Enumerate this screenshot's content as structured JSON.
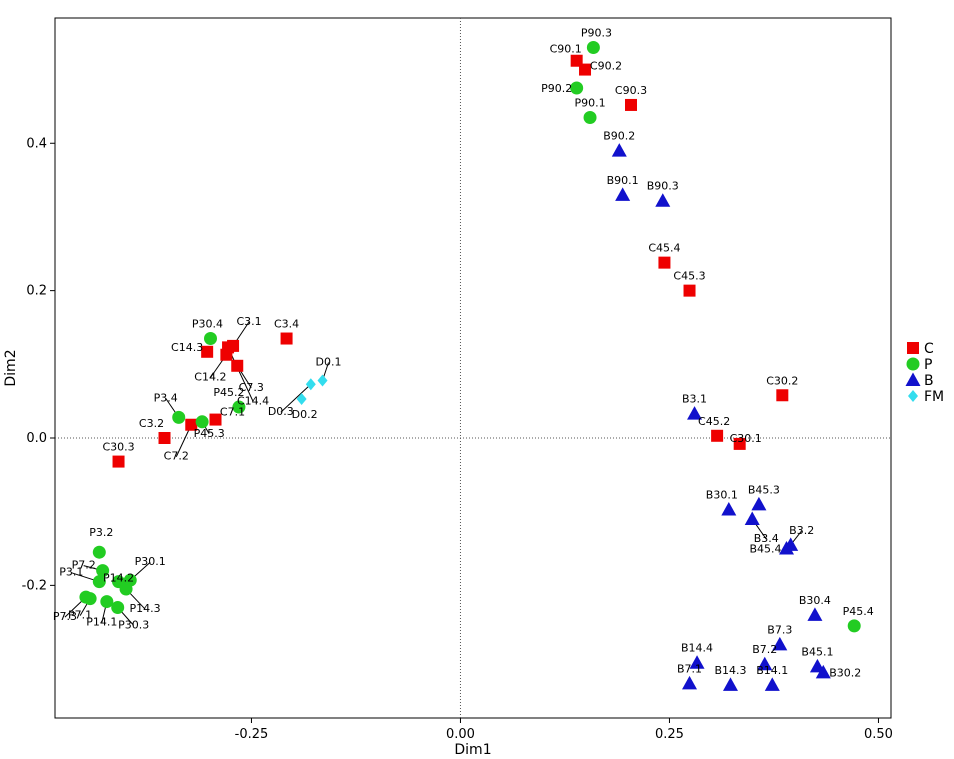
{
  "chart_data": {
    "type": "scatter",
    "xlabel": "Dim1",
    "ylabel": "Dim2",
    "xlim": [
      -0.485,
      0.515
    ],
    "ylim": [
      -0.38,
      0.57
    ],
    "xticks": [
      -0.25,
      0.0,
      0.25,
      0.5
    ],
    "xtick_labels": [
      "-0.25",
      "0.00",
      "0.25",
      "0.50"
    ],
    "yticks": [
      -0.2,
      0.0,
      0.2,
      0.4
    ],
    "ytick_labels": [
      "-0.2",
      "0.0",
      "0.2",
      "0.4"
    ],
    "reference_lines": {
      "x": 0.0,
      "y": 0.0,
      "style": "dotted"
    },
    "legend_position": "right",
    "series": [
      {
        "name": "C",
        "marker": "square",
        "color": "#ee0000",
        "points": [
          {
            "label": "C90.1",
            "x": 0.139,
            "y": 0.512
          },
          {
            "label": "C90.2",
            "x": 0.149,
            "y": 0.5
          },
          {
            "label": "C90.3",
            "x": 0.204,
            "y": 0.452
          },
          {
            "label": "C45.4",
            "x": 0.244,
            "y": 0.238
          },
          {
            "label": "C45.3",
            "x": 0.274,
            "y": 0.2
          },
          {
            "label": "C30.2",
            "x": 0.385,
            "y": 0.058
          },
          {
            "label": "C45.2",
            "x": 0.307,
            "y": 0.003
          },
          {
            "label": "C30.1",
            "x": 0.334,
            "y": -0.008
          },
          {
            "label": "C3.1",
            "x": -0.272,
            "y": 0.125
          },
          {
            "label": "C3.4",
            "x": -0.208,
            "y": 0.135
          },
          {
            "label": "C14.3",
            "x": -0.303,
            "y": 0.117
          },
          {
            "label": "C14.2",
            "x": -0.28,
            "y": 0.113
          },
          {
            "label": "C7.3",
            "x": -0.267,
            "y": 0.098
          },
          {
            "label": "C14.4",
            "x": -0.278,
            "y": 0.123
          },
          {
            "label": "C7.1",
            "x": -0.293,
            "y": 0.025
          },
          {
            "label": "C3.2",
            "x": -0.354,
            "y": 0.0
          },
          {
            "label": "C7.2",
            "x": -0.322,
            "y": 0.018
          },
          {
            "label": "C30.3",
            "x": -0.409,
            "y": -0.032
          }
        ]
      },
      {
        "name": "P",
        "marker": "circle",
        "color": "#22cc22",
        "points": [
          {
            "label": "P90.3",
            "x": 0.159,
            "y": 0.53
          },
          {
            "label": "P90.2",
            "x": 0.139,
            "y": 0.475
          },
          {
            "label": "P90.1",
            "x": 0.155,
            "y": 0.435
          },
          {
            "label": "P30.4",
            "x": -0.299,
            "y": 0.135
          },
          {
            "label": "P45.2",
            "x": -0.265,
            "y": 0.042
          },
          {
            "label": "P3.4",
            "x": -0.337,
            "y": 0.028
          },
          {
            "label": "P45.3",
            "x": -0.309,
            "y": 0.022
          },
          {
            "label": "P45.4",
            "x": 0.471,
            "y": -0.255
          },
          {
            "label": "P3.2",
            "x": -0.432,
            "y": -0.155
          },
          {
            "label": "P7.2",
            "x": -0.428,
            "y": -0.18
          },
          {
            "label": "P3.1",
            "x": -0.432,
            "y": -0.195
          },
          {
            "label": "P30.1",
            "x": -0.395,
            "y": -0.193
          },
          {
            "label": "P14.2",
            "x": -0.409,
            "y": -0.195
          },
          {
            "label": "P7.1",
            "x": -0.443,
            "y": -0.218
          },
          {
            "label": "P14.1",
            "x": -0.423,
            "y": -0.222
          },
          {
            "label": "P30.3",
            "x": -0.41,
            "y": -0.23
          },
          {
            "label": "P7.3",
            "x": -0.448,
            "y": -0.216
          },
          {
            "label": "P14.3",
            "x": -0.4,
            "y": -0.205
          }
        ]
      },
      {
        "name": "B",
        "marker": "triangle",
        "color": "#1111cc",
        "points": [
          {
            "label": "B90.2",
            "x": 0.19,
            "y": 0.39
          },
          {
            "label": "B90.1",
            "x": 0.194,
            "y": 0.33
          },
          {
            "label": "B90.3",
            "x": 0.242,
            "y": 0.322
          },
          {
            "label": "B3.1",
            "x": 0.28,
            "y": 0.033
          },
          {
            "label": "B30.1",
            "x": 0.321,
            "y": -0.097
          },
          {
            "label": "B45.3",
            "x": 0.357,
            "y": -0.09
          },
          {
            "label": "B3.4",
            "x": 0.349,
            "y": -0.11
          },
          {
            "label": "B3.2",
            "x": 0.395,
            "y": -0.145
          },
          {
            "label": "B45.4",
            "x": 0.39,
            "y": -0.15
          },
          {
            "label": "B30.4",
            "x": 0.424,
            "y": -0.24
          },
          {
            "label": "B7.3",
            "x": 0.382,
            "y": -0.28
          },
          {
            "label": "B7.2",
            "x": 0.364,
            "y": -0.307
          },
          {
            "label": "B45.1",
            "x": 0.427,
            "y": -0.31
          },
          {
            "label": "B30.2",
            "x": 0.434,
            "y": -0.318
          },
          {
            "label": "B14.4",
            "x": 0.283,
            "y": -0.305
          },
          {
            "label": "B7.1",
            "x": 0.274,
            "y": -0.333
          },
          {
            "label": "B14.3",
            "x": 0.323,
            "y": -0.335
          },
          {
            "label": "B14.1",
            "x": 0.373,
            "y": -0.335
          }
        ]
      },
      {
        "name": "FM",
        "marker": "diamond",
        "color": "#33ddee",
        "points": [
          {
            "label": "D0.1",
            "x": -0.165,
            "y": 0.078
          },
          {
            "label": "D0.3",
            "x": -0.179,
            "y": 0.073
          },
          {
            "label": "D0.2",
            "x": -0.19,
            "y": 0.053
          }
        ]
      }
    ]
  }
}
